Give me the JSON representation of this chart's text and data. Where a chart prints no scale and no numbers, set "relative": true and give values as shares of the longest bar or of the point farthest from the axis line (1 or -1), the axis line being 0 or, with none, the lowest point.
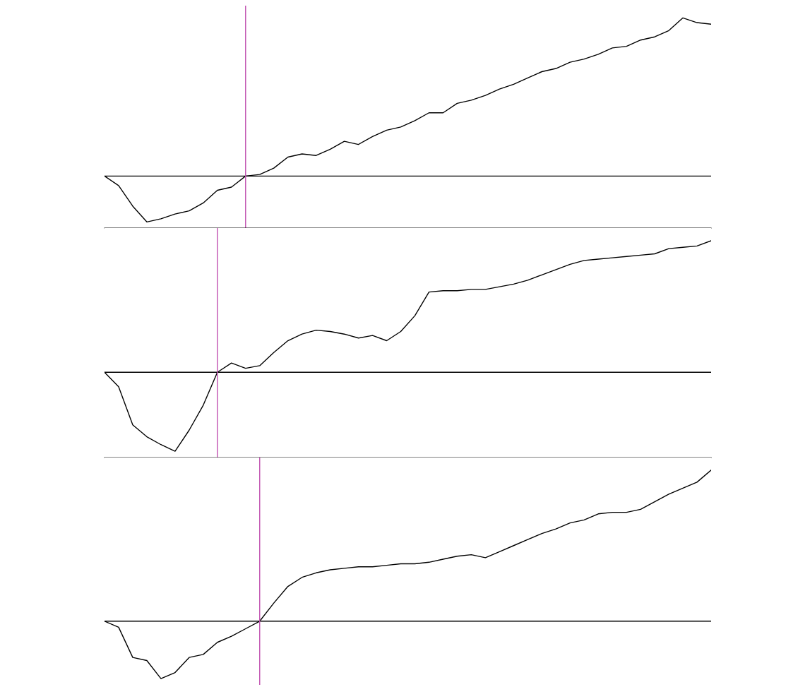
{
  "chart_data": [
    {
      "type": "line",
      "relative": true,
      "categories": [
        null,
        null,
        null,
        null,
        null,
        null,
        null,
        null,
        null,
        null,
        null,
        null,
        null,
        null,
        null,
        null,
        null,
        null,
        null,
        null,
        null,
        null,
        null,
        null,
        null,
        null,
        null,
        null,
        null,
        null,
        null,
        null,
        null,
        null,
        null,
        null,
        null,
        null,
        null,
        null,
        null,
        null,
        null,
        null
      ],
      "series": [
        {
          "color": "#000000",
          "values": [
            0,
            -0.06,
            -0.19,
            -0.29,
            -0.27,
            -0.24,
            -0.22,
            -0.17,
            -0.09,
            -0.07,
            0,
            0.01,
            0.05,
            0.12,
            0.14,
            0.13,
            0.17,
            0.22,
            0.2,
            0.25,
            0.29,
            0.31,
            0.35,
            0.4,
            0.4,
            0.46,
            0.48,
            0.51,
            0.55,
            0.58,
            0.62,
            0.66,
            0.68,
            0.72,
            0.74,
            0.77,
            0.81,
            0.82,
            0.86,
            0.88,
            0.92,
            1,
            0.97,
            0.96
          ]
        }
      ]
    },
    {
      "type": "line",
      "relative": true,
      "categories": [
        null,
        null,
        null,
        null,
        null,
        null,
        null,
        null,
        null,
        null,
        null,
        null,
        null,
        null,
        null,
        null,
        null,
        null,
        null,
        null,
        null,
        null,
        null,
        null,
        null,
        null,
        null,
        null,
        null,
        null,
        null,
        null,
        null,
        null,
        null,
        null,
        null,
        null,
        null,
        null,
        null,
        null,
        null,
        null
      ],
      "series": [
        {
          "color": "#000000",
          "values": [
            0,
            -0.11,
            -0.4,
            -0.49,
            -0.55,
            -0.6,
            -0.44,
            -0.25,
            0,
            0.07,
            0.03,
            0.05,
            0.15,
            0.24,
            0.29,
            0.32,
            0.31,
            0.29,
            0.26,
            0.28,
            0.24,
            0.31,
            0.43,
            0.61,
            0.62,
            0.62,
            0.63,
            0.63,
            0.65,
            0.67,
            0.7,
            0.74,
            0.78,
            0.82,
            0.85,
            0.86,
            0.87,
            0.88,
            0.89,
            0.9,
            0.94,
            0.95,
            0.96,
            1
          ]
        }
      ]
    },
    {
      "type": "line",
      "relative": true,
      "categories": [
        null,
        null,
        null,
        null,
        null,
        null,
        null,
        null,
        null,
        null,
        null,
        null,
        null,
        null,
        null,
        null,
        null,
        null,
        null,
        null,
        null,
        null,
        null,
        null,
        null,
        null,
        null,
        null,
        null,
        null,
        null,
        null,
        null,
        null,
        null,
        null,
        null,
        null,
        null,
        null,
        null,
        null,
        null,
        null
      ],
      "series": [
        {
          "color": "#000000",
          "values": [
            0,
            -0.04,
            -0.24,
            -0.26,
            -0.38,
            -0.34,
            -0.24,
            -0.22,
            -0.14,
            -0.1,
            -0.05,
            0,
            0.12,
            0.23,
            0.29,
            0.32,
            0.34,
            0.35,
            0.36,
            0.36,
            0.37,
            0.38,
            0.38,
            0.39,
            0.41,
            0.43,
            0.44,
            0.42,
            0.46,
            0.5,
            0.54,
            0.58,
            0.61,
            0.65,
            0.67,
            0.71,
            0.72,
            0.72,
            0.74,
            0.79,
            0.84,
            0.88,
            0.92,
            1
          ]
        }
      ]
    }
  ]
}
